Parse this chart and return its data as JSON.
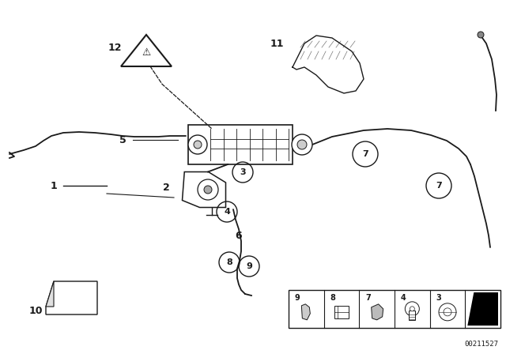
{
  "bg_color": "#ffffff",
  "line_color": "#1a1a1a",
  "image_id": "00211527",
  "fig_w": 6.4,
  "fig_h": 4.48,
  "dpi": 100
}
